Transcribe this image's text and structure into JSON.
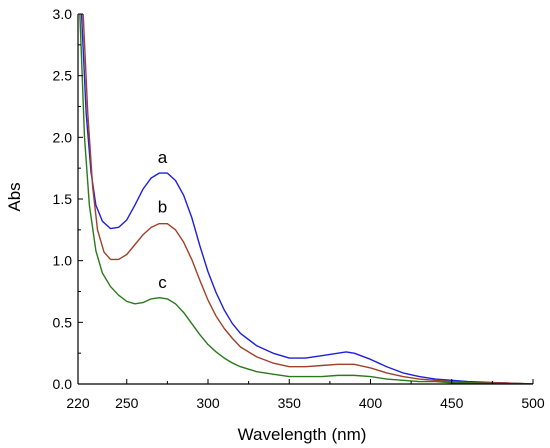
{
  "chart_data": {
    "type": "line",
    "xlabel": "Wavelength (nm)",
    "ylabel": "Abs",
    "xlim": [
      220,
      500
    ],
    "ylim": [
      0.0,
      3.0
    ],
    "x_ticks": [
      220,
      250,
      300,
      350,
      400,
      450,
      500
    ],
    "x_tick_labels": [
      "220",
      "250",
      "300",
      "350",
      "400",
      "450",
      "500"
    ],
    "y_ticks": [
      0.0,
      0.5,
      1.0,
      1.5,
      2.0,
      2.5,
      3.0
    ],
    "y_tick_labels": [
      "0.0",
      "0.5",
      "1.0",
      "1.5",
      "2.0",
      "2.5",
      "3.0"
    ],
    "grid": false,
    "series": [
      {
        "name": "a",
        "color": "#1f1fe0",
        "label_at": [
          272,
          1.79
        ],
        "points": [
          [
            222,
            3.05
          ],
          [
            225,
            2.2
          ],
          [
            228,
            1.72
          ],
          [
            231,
            1.45
          ],
          [
            235,
            1.32
          ],
          [
            240,
            1.26
          ],
          [
            245,
            1.27
          ],
          [
            250,
            1.33
          ],
          [
            255,
            1.45
          ],
          [
            260,
            1.58
          ],
          [
            265,
            1.67
          ],
          [
            270,
            1.71
          ],
          [
            275,
            1.71
          ],
          [
            280,
            1.65
          ],
          [
            285,
            1.53
          ],
          [
            290,
            1.35
          ],
          [
            295,
            1.12
          ],
          [
            300,
            0.91
          ],
          [
            305,
            0.74
          ],
          [
            310,
            0.6
          ],
          [
            315,
            0.49
          ],
          [
            320,
            0.41
          ],
          [
            330,
            0.31
          ],
          [
            340,
            0.25
          ],
          [
            350,
            0.21
          ],
          [
            360,
            0.21
          ],
          [
            370,
            0.23
          ],
          [
            380,
            0.25
          ],
          [
            385,
            0.26
          ],
          [
            390,
            0.25
          ],
          [
            400,
            0.2
          ],
          [
            410,
            0.14
          ],
          [
            420,
            0.09
          ],
          [
            430,
            0.06
          ],
          [
            440,
            0.04
          ],
          [
            450,
            0.03
          ],
          [
            460,
            0.02
          ],
          [
            480,
            0.01
          ],
          [
            500,
            0.0
          ]
        ]
      },
      {
        "name": "b",
        "color": "#a0402a",
        "label_at": [
          272,
          1.39
        ],
        "points": [
          [
            223,
            3.05
          ],
          [
            226,
            2.2
          ],
          [
            229,
            1.6
          ],
          [
            232,
            1.25
          ],
          [
            236,
            1.07
          ],
          [
            240,
            1.01
          ],
          [
            245,
            1.01
          ],
          [
            250,
            1.05
          ],
          [
            255,
            1.13
          ],
          [
            260,
            1.21
          ],
          [
            265,
            1.27
          ],
          [
            270,
            1.3
          ],
          [
            275,
            1.3
          ],
          [
            280,
            1.25
          ],
          [
            285,
            1.15
          ],
          [
            290,
            1.01
          ],
          [
            295,
            0.84
          ],
          [
            300,
            0.68
          ],
          [
            305,
            0.55
          ],
          [
            310,
            0.45
          ],
          [
            315,
            0.37
          ],
          [
            320,
            0.3
          ],
          [
            330,
            0.22
          ],
          [
            340,
            0.17
          ],
          [
            350,
            0.14
          ],
          [
            360,
            0.14
          ],
          [
            370,
            0.15
          ],
          [
            380,
            0.16
          ],
          [
            385,
            0.16
          ],
          [
            390,
            0.16
          ],
          [
            400,
            0.13
          ],
          [
            410,
            0.09
          ],
          [
            420,
            0.06
          ],
          [
            430,
            0.04
          ],
          [
            440,
            0.03
          ],
          [
            450,
            0.02
          ],
          [
            460,
            0.01
          ],
          [
            480,
            0.01
          ],
          [
            500,
            0.0
          ]
        ]
      },
      {
        "name": "c",
        "color": "#2a7a1a",
        "label_at": [
          272,
          0.78
        ],
        "points": [
          [
            221,
            3.05
          ],
          [
            224,
            2.0
          ],
          [
            227,
            1.45
          ],
          [
            231,
            1.08
          ],
          [
            235,
            0.9
          ],
          [
            240,
            0.79
          ],
          [
            245,
            0.72
          ],
          [
            250,
            0.67
          ],
          [
            255,
            0.65
          ],
          [
            260,
            0.66
          ],
          [
            265,
            0.69
          ],
          [
            270,
            0.7
          ],
          [
            275,
            0.69
          ],
          [
            280,
            0.65
          ],
          [
            285,
            0.58
          ],
          [
            290,
            0.49
          ],
          [
            295,
            0.4
          ],
          [
            300,
            0.32
          ],
          [
            305,
            0.26
          ],
          [
            310,
            0.21
          ],
          [
            315,
            0.17
          ],
          [
            320,
            0.14
          ],
          [
            330,
            0.1
          ],
          [
            340,
            0.08
          ],
          [
            350,
            0.06
          ],
          [
            360,
            0.06
          ],
          [
            370,
            0.06
          ],
          [
            380,
            0.07
          ],
          [
            385,
            0.07
          ],
          [
            390,
            0.07
          ],
          [
            400,
            0.06
          ],
          [
            410,
            0.04
          ],
          [
            420,
            0.03
          ],
          [
            430,
            0.02
          ],
          [
            440,
            0.02
          ],
          [
            450,
            0.01
          ],
          [
            460,
            0.01
          ],
          [
            480,
            0.0
          ],
          [
            500,
            0.0
          ]
        ]
      }
    ]
  }
}
